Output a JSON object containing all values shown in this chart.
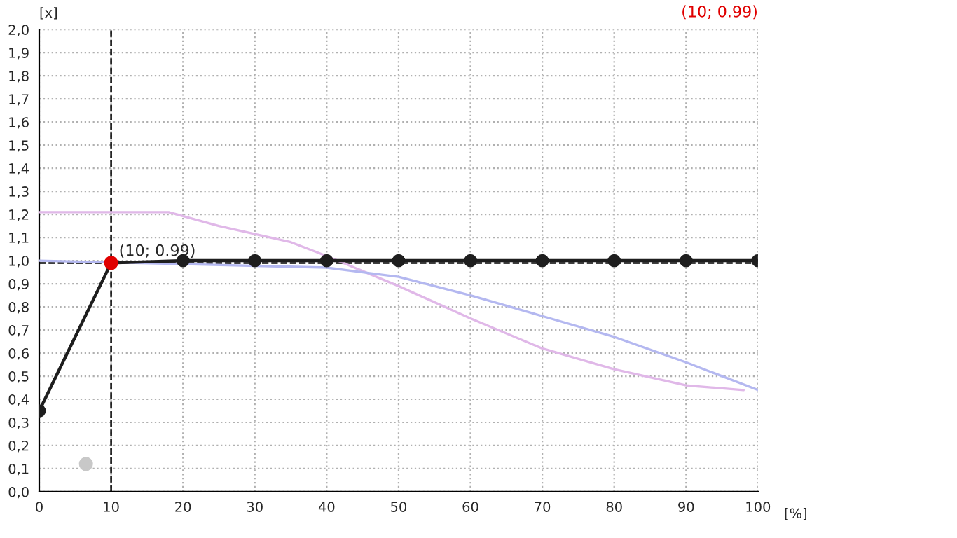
{
  "chart_data": {
    "type": "line",
    "xlabel": "[%]",
    "ylabel": "[x]",
    "annotations": [
      {
        "text": "(10; 0.99)",
        "x": 10,
        "y": 0.99
      },
      "(10; 0.99)"
    ],
    "series": [
      {
        "color": "#e0b8e8",
        "x": [
          0,
          18,
          25,
          35,
          40,
          50,
          60,
          70,
          80,
          90,
          98
        ],
        "values": [
          1.21,
          1.21,
          1.15,
          1.08,
          1.02,
          0.89,
          0.75,
          0.62,
          0.53,
          0.46,
          0.44
        ],
        "marker": "none"
      },
      {
        "color": "#b4b8f0",
        "x": [
          0,
          40,
          50,
          60,
          70,
          80,
          90,
          100
        ],
        "values": [
          1.0,
          0.97,
          0.93,
          0.85,
          0.76,
          0.67,
          0.56,
          0.44
        ],
        "marker": "none"
      },
      {
        "color": "#1e1e1e",
        "x": [
          0,
          10,
          20,
          30,
          40,
          50,
          60,
          70,
          80,
          90,
          100
        ],
        "values": [
          0.35,
          0.99,
          1.0,
          1.0,
          1.0,
          1.0,
          1.0,
          1.0,
          1.0,
          1.0,
          1.0
        ],
        "marker": "circle"
      },
      {
        "type": "scatter",
        "color": "#e00000",
        "x": [
          10
        ],
        "values": [
          0.99
        ],
        "marker": "circle"
      },
      {
        "type": "scatter",
        "color": "#c8c8c8",
        "x": [
          6.5
        ],
        "values": [
          0.12
        ],
        "marker": "circle"
      }
    ],
    "ref_lines": [
      {
        "axis": "x",
        "value": 10,
        "color": "#000000",
        "line_style": "dashed"
      },
      {
        "axis": "y",
        "value": 0.99,
        "color": "#000000",
        "line_style": "dashed"
      }
    ],
    "xlim": [
      0,
      100
    ],
    "xticks": [
      0,
      10,
      20,
      30,
      40,
      50,
      60,
      70,
      80,
      90,
      100
    ],
    "ylim": [
      0,
      2.0
    ],
    "yticks": [
      {
        "value": 0,
        "label": "0,0"
      },
      {
        "value": 0.1,
        "label": "0,1"
      },
      {
        "value": 0.2,
        "label": "0,2"
      },
      {
        "value": 0.3,
        "label": "0,3"
      },
      {
        "value": 0.4,
        "label": "0,4"
      },
      {
        "value": 0.5,
        "label": "0,5"
      },
      {
        "value": 0.6,
        "label": "0,6"
      },
      {
        "value": 0.7,
        "label": "0,7"
      },
      {
        "value": 0.8,
        "label": "0,8"
      },
      {
        "value": 0.9,
        "label": "0,9"
      },
      {
        "value": 1.0,
        "label": "1,0"
      },
      {
        "value": 1.1,
        "label": "1,1"
      },
      {
        "value": 1.2,
        "label": "1,2"
      },
      {
        "value": 1.3,
        "label": "1,3"
      },
      {
        "value": 1.4,
        "label": "1,4"
      },
      {
        "value": 1.5,
        "label": "1,5"
      },
      {
        "value": 1.6,
        "label": "1,6"
      },
      {
        "value": 1.7,
        "label": "1,7"
      },
      {
        "value": 1.8,
        "label": "1,8"
      },
      {
        "value": 1.9,
        "label": "1,9"
      },
      {
        "value": 2.0,
        "label": "2,0"
      }
    ],
    "grid": true,
    "legend": false,
    "line_style": "solid"
  }
}
